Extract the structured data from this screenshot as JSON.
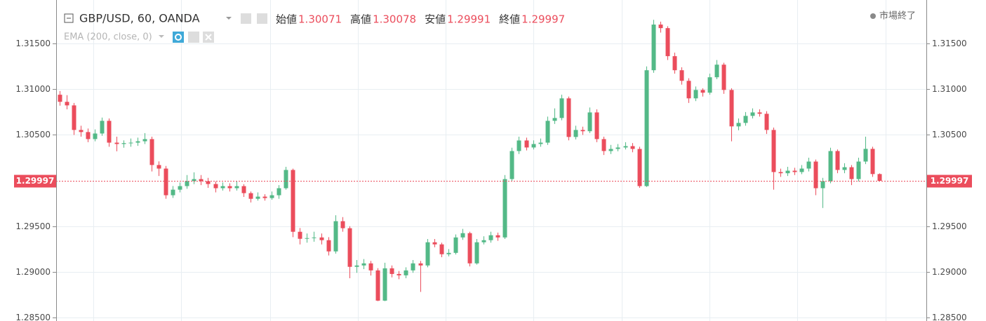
{
  "chart_data": {
    "type": "candlestick",
    "title": "GBP/USD, 60, OANDA",
    "indicator": "EMA (200, close, 0)",
    "status": "市場終了",
    "ohlc_legend": [
      {
        "label": "始値",
        "value": 1.30071
      },
      {
        "label": "高値",
        "value": 1.30078
      },
      {
        "label": "安値",
        "value": 1.29991
      },
      {
        "label": "終値",
        "value": 1.29997
      }
    ],
    "up_color": "#53b987",
    "down_color": "#eb4d5c",
    "ylim": [
      1.28485,
      1.31977
    ],
    "yticks": [
      {
        "value": 1.285,
        "label": "1.28500"
      },
      {
        "value": 1.29,
        "label": "1.29000"
      },
      {
        "value": 1.295,
        "label": "1.29500"
      },
      {
        "value": 1.305,
        "label": "1.30500"
      },
      {
        "value": 1.31,
        "label": "1.31000"
      },
      {
        "value": 1.315,
        "label": "1.31500"
      }
    ],
    "grid": true,
    "open": [
      1.3094,
      1.30862,
      1.30823,
      1.30554,
      1.30531,
      1.30454,
      1.30515,
      1.30654,
      1.30415,
      1.304,
      1.3041,
      1.30415,
      1.3043,
      1.30454,
      1.3017,
      1.30131,
      1.29839,
      1.299,
      1.29939,
      1.29993,
      1.30016,
      1.29993,
      1.29962,
      1.29916,
      1.29939,
      1.29916,
      1.29939,
      1.29862,
      1.298,
      1.29824,
      1.29808,
      1.29839,
      1.29916,
      1.30116,
      1.29439,
      1.29362,
      1.2937,
      1.29377,
      1.29347,
      1.29224,
      1.29555,
      1.29478,
      1.29055,
      1.2907,
      1.29093,
      1.29016,
      1.28685,
      1.29039,
      1.28977,
      1.28962,
      1.29016,
      1.29093,
      1.2907,
      1.29324,
      1.29301,
      1.29193,
      1.29208,
      1.29377,
      1.29424,
      1.29093,
      1.29324,
      1.29347,
      1.29401,
      1.29377,
      1.30016,
      1.30323,
      1.30439,
      1.30362,
      1.304,
      1.30415,
      1.30654,
      1.30685,
      1.309,
      1.30477,
      1.30554,
      1.3054,
      1.30746,
      1.30454,
      1.30323,
      1.30346,
      1.30362,
      1.30377,
      1.30346,
      1.29939,
      1.31208,
      1.31708,
      1.31669,
      1.31362,
      1.31208,
      1.31092,
      1.309,
      1.30992,
      1.30962,
      1.31131,
      1.31269,
      1.30992,
      1.30593,
      1.30631,
      1.30708,
      1.30746,
      1.30731,
      1.30554,
      1.30093,
      1.3008,
      1.30108,
      1.30093,
      1.30131,
      1.30208,
      1.29916,
      1.29993,
      1.30323,
      1.30116,
      1.30146,
      1.30016,
      1.30208,
      1.30347,
      1.30071
    ],
    "high": [
      1.3098,
      1.30935,
      1.3085,
      1.306,
      1.3057,
      1.3056,
      1.3069,
      1.3068,
      1.3048,
      1.3044,
      1.3046,
      1.3047,
      1.3052,
      1.3048,
      1.3021,
      1.3016,
      1.2994,
      1.2998,
      1.3006,
      1.3009,
      1.3006,
      1.3003,
      1.2999,
      1.2998,
      1.2997,
      1.2999,
      1.2996,
      1.2988,
      1.2987,
      1.2985,
      1.2988,
      1.2995,
      1.3015,
      1.3013,
      1.2948,
      1.2942,
      1.2944,
      1.2942,
      1.2938,
      1.2962,
      1.296,
      1.295,
      1.2913,
      1.2914,
      1.2912,
      1.2904,
      1.291,
      1.2907,
      1.2901,
      1.2905,
      1.2913,
      1.2912,
      1.2936,
      1.2936,
      1.2932,
      1.2925,
      1.2941,
      1.2947,
      1.2944,
      1.2936,
      1.2939,
      1.2944,
      1.2943,
      1.3006,
      1.3036,
      1.3048,
      1.3047,
      1.3044,
      1.3046,
      1.307,
      1.3079,
      1.3094,
      1.3092,
      1.306,
      1.3059,
      1.308,
      1.3078,
      1.3048,
      1.3039,
      1.304,
      1.3042,
      1.3041,
      1.3037,
      1.3125,
      1.3176,
      1.3174,
      1.3169,
      1.314,
      1.3124,
      1.3112,
      1.3103,
      1.3101,
      1.3117,
      1.3132,
      1.3129,
      1.3101,
      1.3068,
      1.3075,
      1.3079,
      1.3078,
      1.3076,
      1.3058,
      1.3013,
      1.3015,
      1.3014,
      1.3017,
      1.3025,
      1.3023,
      1.3003,
      1.3036,
      1.3034,
      1.3019,
      1.3017,
      1.3025,
      1.3048,
      1.3037,
      1.30078
    ],
    "low": [
      1.3082,
      1.3078,
      1.305,
      1.3048,
      1.3042,
      1.3043,
      1.3049,
      1.3037,
      1.3032,
      1.3036,
      1.3037,
      1.3038,
      1.304,
      1.301,
      1.3005,
      1.298,
      1.2981,
      1.2987,
      1.2991,
      1.2996,
      1.2995,
      1.2992,
      1.2987,
      1.2989,
      1.2988,
      1.2989,
      1.2982,
      1.2976,
      1.2978,
      1.2978,
      1.2979,
      1.298,
      1.299,
      1.2938,
      1.293,
      1.2932,
      1.2933,
      1.293,
      1.2918,
      1.292,
      1.2944,
      1.2893,
      1.2899,
      1.2903,
      1.2896,
      1.2868,
      1.2868,
      1.2894,
      1.2892,
      1.2893,
      1.2899,
      1.2878,
      1.2905,
      1.2927,
      1.2916,
      1.2917,
      1.2919,
      1.2935,
      1.2906,
      1.2908,
      1.293,
      1.2932,
      1.2934,
      1.2936,
      1.2999,
      1.3029,
      1.3033,
      1.3034,
      1.3037,
      1.3039,
      1.3062,
      1.3066,
      1.3044,
      1.3045,
      1.305,
      1.3052,
      1.3042,
      1.3028,
      1.3029,
      1.3032,
      1.3034,
      1.3031,
      1.2992,
      1.2993,
      1.3118,
      1.3162,
      1.3132,
      1.3117,
      1.3105,
      1.3085,
      1.3087,
      1.3092,
      1.3094,
      1.3111,
      1.3095,
      1.3043,
      1.3055,
      1.306,
      1.3068,
      1.307,
      1.3051,
      1.299,
      1.3004,
      1.3005,
      1.3006,
      1.3007,
      1.301,
      1.2984,
      1.297,
      1.2997,
      1.3008,
      1.3008,
      1.2995,
      1.2999,
      1.3018,
      1.3004,
      1.29991
    ],
    "close": [
      1.30862,
      1.30823,
      1.30554,
      1.30531,
      1.30454,
      1.30515,
      1.30654,
      1.30415,
      1.304,
      1.3041,
      1.30415,
      1.3043,
      1.30454,
      1.3017,
      1.30131,
      1.29839,
      1.299,
      1.29939,
      1.29993,
      1.30016,
      1.29993,
      1.29962,
      1.29916,
      1.29939,
      1.29916,
      1.29939,
      1.29862,
      1.298,
      1.29824,
      1.29808,
      1.29839,
      1.29916,
      1.30116,
      1.29439,
      1.29362,
      1.2937,
      1.29377,
      1.29347,
      1.29224,
      1.29555,
      1.29478,
      1.29055,
      1.2907,
      1.29093,
      1.29016,
      1.28685,
      1.29039,
      1.28977,
      1.28962,
      1.29016,
      1.29093,
      1.2907,
      1.29324,
      1.29301,
      1.29193,
      1.29208,
      1.29377,
      1.29424,
      1.29093,
      1.29324,
      1.29347,
      1.29401,
      1.29377,
      1.30016,
      1.30323,
      1.30439,
      1.30362,
      1.304,
      1.30415,
      1.30654,
      1.30685,
      1.309,
      1.30477,
      1.30554,
      1.3054,
      1.30746,
      1.30454,
      1.30323,
      1.30346,
      1.30362,
      1.30377,
      1.30346,
      1.29939,
      1.31208,
      1.31708,
      1.31669,
      1.31362,
      1.31208,
      1.31092,
      1.309,
      1.30992,
      1.30962,
      1.31131,
      1.31269,
      1.30992,
      1.30593,
      1.30631,
      1.30708,
      1.30746,
      1.30731,
      1.30554,
      1.30093,
      1.3008,
      1.30108,
      1.30093,
      1.30131,
      1.30208,
      1.29916,
      1.29993,
      1.30323,
      1.30116,
      1.30146,
      1.30016,
      1.30208,
      1.30347,
      1.30071,
      1.29997
    ]
  }
}
